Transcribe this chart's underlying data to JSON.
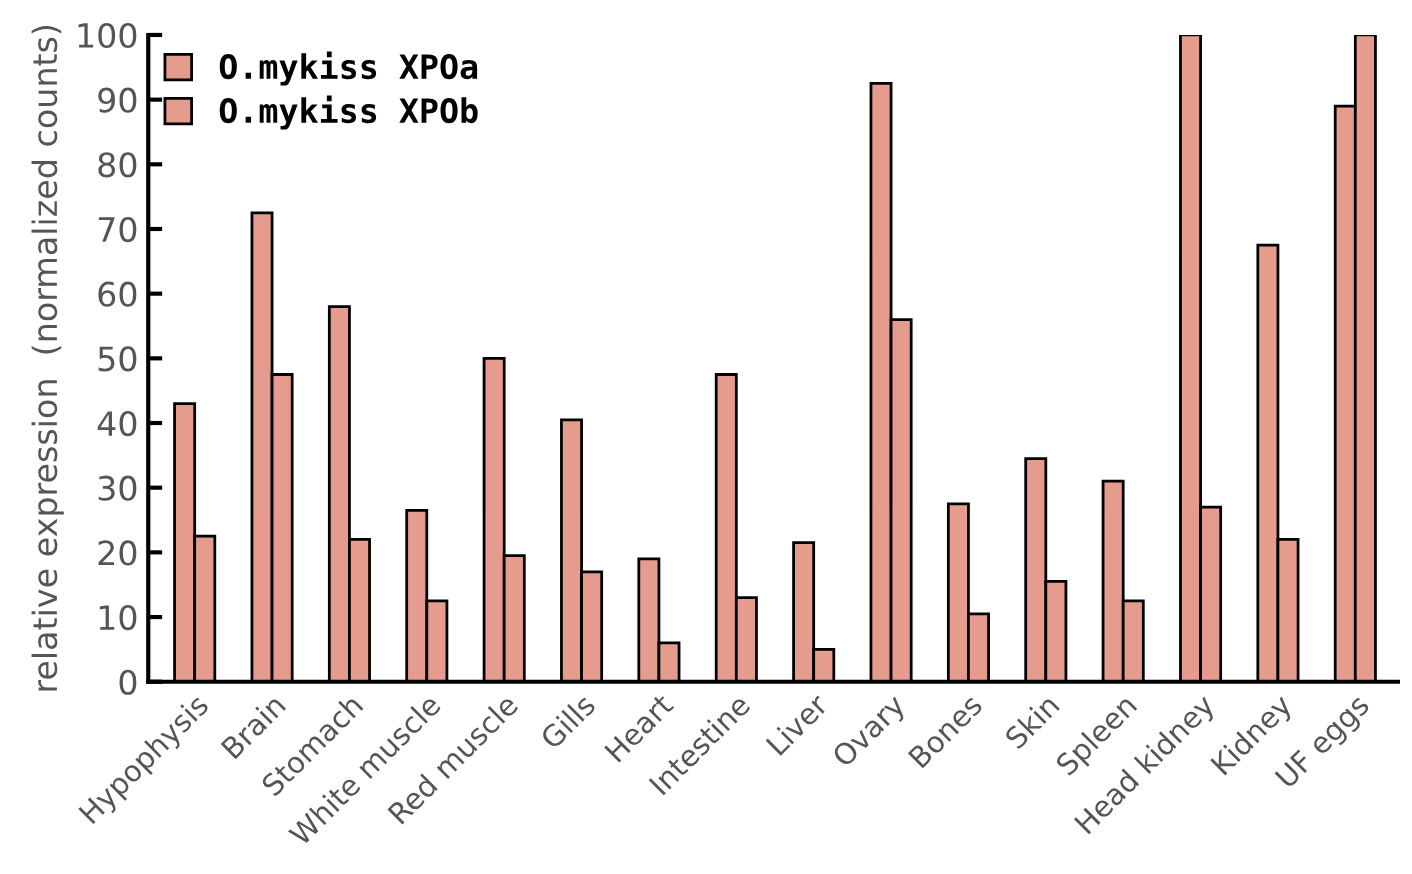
{
  "chart_data": {
    "type": "bar",
    "ylabel": "relative expression  (normalized counts)",
    "categories": [
      "Hypophysis",
      "Brain",
      "Stomach",
      "White muscle",
      "Red muscle",
      "Gills",
      "Heart",
      "Intestine",
      "Liver",
      "Ovary",
      "Bones",
      "Skin",
      "Spleen",
      "Head kidney",
      "Kidney",
      "UF eggs"
    ],
    "series": [
      {
        "name": "O.mykiss XPOa",
        "color": "#e59c8c",
        "values": [
          43,
          72.5,
          58,
          26.5,
          50,
          40.5,
          19,
          47.5,
          21.5,
          92.5,
          27.5,
          34.5,
          31,
          100,
          67.5,
          89
        ]
      },
      {
        "name": "O.mykiss XPOb",
        "color": "#e59c8c",
        "values": [
          22.5,
          47.5,
          22,
          12.5,
          19.5,
          17,
          6,
          13,
          5,
          56,
          10.5,
          15.5,
          12.5,
          27,
          22,
          100
        ]
      }
    ],
    "ylim": [
      0,
      100
    ],
    "yticks": [
      0,
      10,
      20,
      30,
      40,
      50,
      60,
      70,
      80,
      90,
      100
    ],
    "legend": "top left",
    "grid": false
  }
}
